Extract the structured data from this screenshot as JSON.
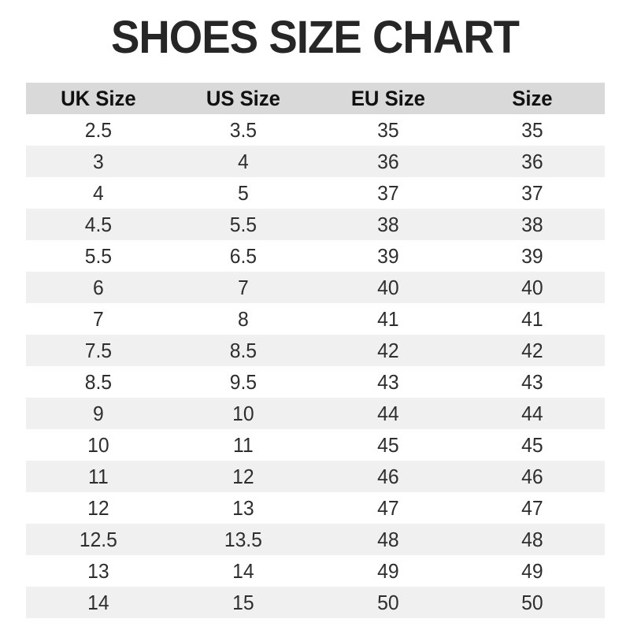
{
  "page": {
    "title": "SHOES SIZE CHART"
  },
  "colors": {
    "header_bg": "#d9d9d9",
    "alt_row_bg": "#f0f0f0",
    "row_bg": "#ffffff",
    "title_text": "#262626",
    "cell_text": "#2e2e2e"
  },
  "chart_data": {
    "type": "table",
    "title": "SHOES SIZE CHART",
    "columns": [
      "UK Size",
      "US Size",
      "EU Size",
      "Size"
    ],
    "rows": [
      [
        "2.5",
        "3.5",
        "35",
        "35"
      ],
      [
        "3",
        "4",
        "36",
        "36"
      ],
      [
        "4",
        "5",
        "37",
        "37"
      ],
      [
        "4.5",
        "5.5",
        "38",
        "38"
      ],
      [
        "5.5",
        "6.5",
        "39",
        "39"
      ],
      [
        "6",
        "7",
        "40",
        "40"
      ],
      [
        "7",
        "8",
        "41",
        "41"
      ],
      [
        "7.5",
        "8.5",
        "42",
        "42"
      ],
      [
        "8.5",
        "9.5",
        "43",
        "43"
      ],
      [
        "9",
        "10",
        "44",
        "44"
      ],
      [
        "10",
        "11",
        "45",
        "45"
      ],
      [
        "11",
        "12",
        "46",
        "46"
      ],
      [
        "12",
        "13",
        "47",
        "47"
      ],
      [
        "12.5",
        "13.5",
        "48",
        "48"
      ],
      [
        "13",
        "14",
        "49",
        "49"
      ],
      [
        "14",
        "15",
        "50",
        "50"
      ]
    ],
    "layout": {
      "striping": "alternate rows shaded starting from second data row",
      "column_alignment": "center",
      "grid": false
    }
  }
}
